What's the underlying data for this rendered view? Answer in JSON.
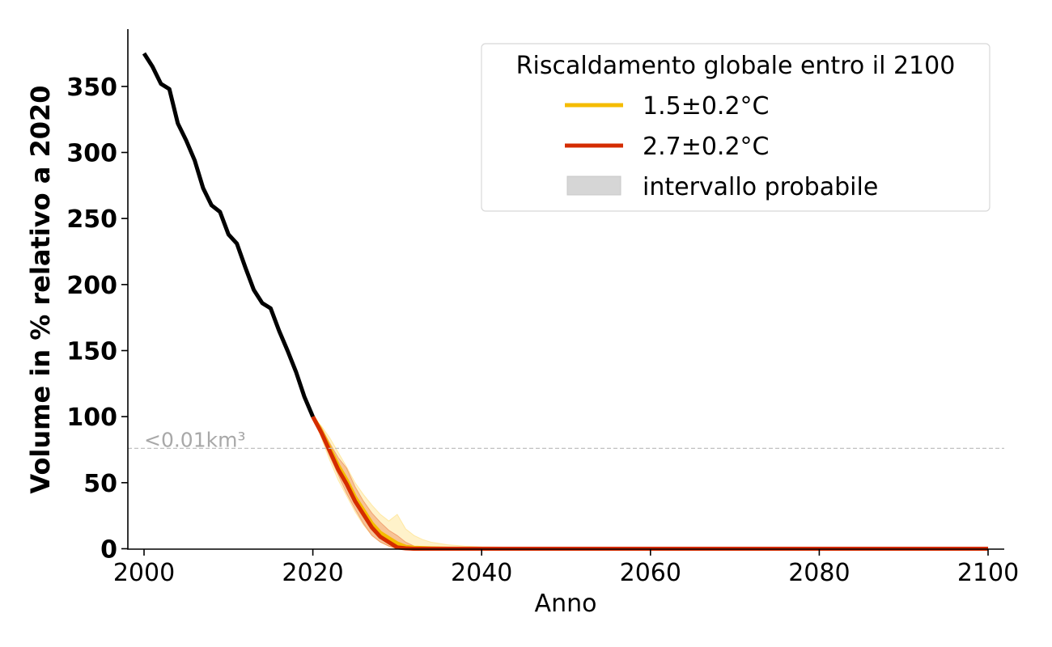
{
  "chart_data": {
    "type": "line",
    "xlabel": "Anno",
    "ylabel": "Volume in % relativo a 2020",
    "xlim": [
      1998,
      2102
    ],
    "ylim": [
      0,
      392
    ],
    "x_ticks": [
      2000,
      2020,
      2040,
      2060,
      2080,
      2100
    ],
    "x_tick_labels": [
      "2000",
      "2020",
      "2040",
      "2060",
      "2080",
      "2100"
    ],
    "y_ticks": [
      0,
      50,
      100,
      150,
      200,
      250,
      300,
      350
    ],
    "y_tick_labels": [
      "0",
      "50",
      "100",
      "150",
      "200",
      "250",
      "300",
      "350"
    ],
    "grid": false,
    "annotation": {
      "text": "<0.01km³",
      "y": 76,
      "color": "#b0b0b0"
    },
    "legend": {
      "title": "Riscaldamento globale entro il 2100",
      "placement": "top-right",
      "entries": [
        {
          "label": "1.5±0.2°C",
          "color": "#f5bc00",
          "kind": "line"
        },
        {
          "label": "2.7±0.2°C",
          "color": "#d42c00",
          "kind": "line"
        },
        {
          "label": "intervallo probabile",
          "color": "#d6d6d6",
          "kind": "patch"
        }
      ]
    },
    "series": [
      {
        "name": "observed",
        "color": "#000000",
        "x": [
          2000,
          2001,
          2002,
          2003,
          2004,
          2005,
          2006,
          2007,
          2008,
          2009,
          2010,
          2011,
          2012,
          2013,
          2014,
          2015,
          2016,
          2017,
          2018,
          2019,
          2020
        ],
        "values": [
          375,
          365,
          352,
          348,
          322,
          309,
          294,
          273,
          260,
          255,
          238,
          231,
          213,
          196,
          186,
          182,
          165,
          150,
          134,
          115,
          100
        ]
      },
      {
        "name": "1.5±0.2°C",
        "color": "#f5bc00",
        "x": [
          2020,
          2021,
          2022,
          2023,
          2024,
          2025,
          2026,
          2027,
          2028,
          2029,
          2030,
          2031,
          2032,
          2033,
          2034,
          2036,
          2040,
          2100
        ],
        "values": [
          100,
          89,
          76,
          63,
          52,
          39,
          29,
          19,
          12,
          8,
          4,
          1.5,
          0.8,
          0.5,
          0.3,
          0.1,
          0,
          0
        ],
        "band_x": [
          2020,
          2021,
          2022,
          2023,
          2024,
          2025,
          2026,
          2027,
          2028,
          2029,
          2030,
          2031,
          2032,
          2033,
          2034,
          2035,
          2036,
          2038,
          2040,
          2045,
          2050,
          2100
        ],
        "band_upper": [
          100,
          93,
          84,
          73,
          62,
          50,
          41,
          33,
          26,
          21,
          26,
          15,
          10,
          7,
          5,
          4,
          3,
          2,
          1.5,
          1,
          0.5,
          0.3
        ],
        "band_lower": [
          100,
          84,
          67,
          52,
          40,
          28,
          18,
          10,
          5,
          2,
          0,
          0,
          0,
          0,
          0,
          0,
          0,
          0,
          0,
          0,
          0,
          0
        ]
      },
      {
        "name": "2.7±0.2°C",
        "color": "#d42c00",
        "x": [
          2020,
          2021,
          2022,
          2023,
          2024,
          2025,
          2026,
          2027,
          2028,
          2029,
          2030,
          2031,
          2032,
          2100
        ],
        "values": [
          100,
          88,
          74,
          60,
          49,
          36,
          26,
          16,
          9,
          5,
          1,
          0.3,
          0,
          0
        ],
        "band_x": [
          2020,
          2021,
          2022,
          2023,
          2024,
          2025,
          2026,
          2027,
          2028,
          2029,
          2030,
          2031,
          2032,
          2033,
          2100
        ],
        "band_upper": [
          100,
          92,
          80,
          69,
          61,
          47,
          36,
          27,
          20,
          14,
          10,
          5,
          2,
          0.5,
          0
        ],
        "band_lower": [
          100,
          85,
          70,
          56,
          42,
          30,
          19,
          10,
          5,
          2,
          0,
          0,
          0,
          0,
          0
        ]
      }
    ]
  }
}
